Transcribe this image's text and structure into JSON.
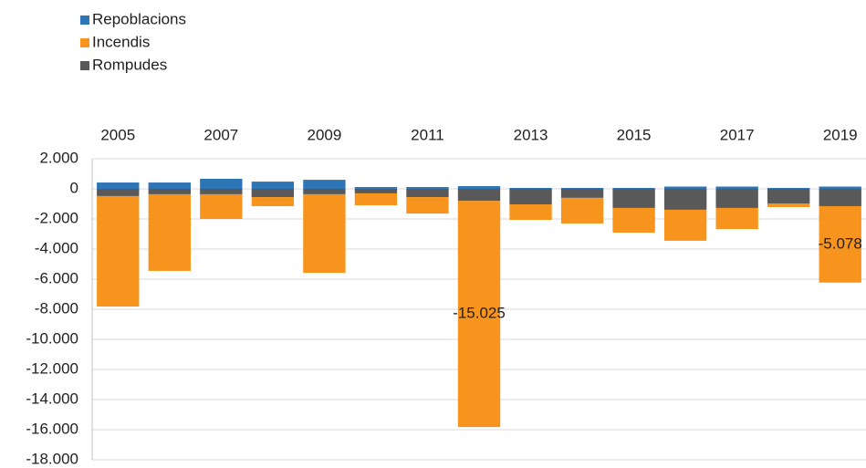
{
  "chart_data": {
    "type": "stacked_bar",
    "categories": [
      "2005",
      null,
      "2007",
      null,
      "2009",
      null,
      "2011",
      null,
      "2013",
      null,
      "2015",
      null,
      "2017",
      null,
      "2019"
    ],
    "series": [
      {
        "name": "Repoblacions",
        "color": "#2e75b6",
        "values": [
          420,
          420,
          670,
          480,
          600,
          120,
          120,
          180,
          60,
          60,
          60,
          150,
          150,
          60,
          150
        ]
      },
      {
        "name": "Incendis",
        "color": "#f7941d",
        "values": [
          -7340,
          -5090,
          -1640,
          -600,
          -5220,
          -790,
          -1090,
          -15025,
          -1030,
          -1700,
          -1640,
          -2060,
          -1400,
          -240,
          -5078
        ],
        "value_labels": [
          null,
          null,
          null,
          null,
          null,
          null,
          null,
          "-15.025",
          null,
          null,
          null,
          null,
          null,
          null,
          "-5.078"
        ]
      },
      {
        "name": "Rompudes",
        "color": "#595959",
        "values": [
          -480,
          -360,
          -360,
          -550,
          -360,
          -300,
          -550,
          -800,
          -1030,
          -600,
          -1270,
          -1390,
          -1270,
          -970,
          -1150
        ]
      }
    ],
    "ylim": [
      -18000,
      2000
    ],
    "yticks": [
      {
        "value": 2000,
        "label": "2.000"
      },
      0,
      {
        "value": -2000,
        "label": "-2.000"
      },
      {
        "value": -4000,
        "label": "-4.000"
      },
      {
        "value": -6000,
        "label": "-6.000"
      },
      {
        "value": -8000,
        "label": "-8.000"
      },
      {
        "value": -10000,
        "label": "-10.000"
      },
      {
        "value": -12000,
        "label": "-12.000"
      },
      {
        "value": -14000,
        "label": "-14.000"
      },
      {
        "value": -16000,
        "label": "-16.000"
      },
      {
        "value": -18000,
        "label": "-18.000"
      }
    ],
    "grid": true,
    "legend": "top-left"
  }
}
